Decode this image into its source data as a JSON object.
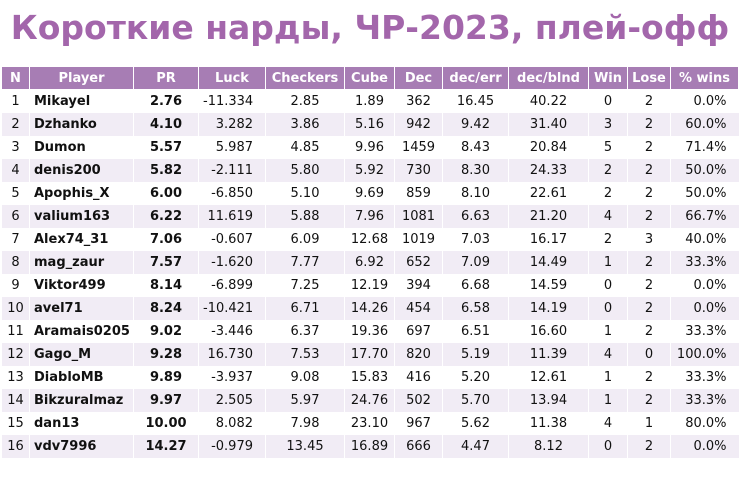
{
  "header": {
    "title": "Короткие нарды, ЧР-2023, плей-офф"
  },
  "table": {
    "columns": [
      "N",
      "Player",
      "PR",
      "Luck",
      "Checkers",
      "Cube",
      "Dec",
      "dec/err",
      "dec/blnd",
      "Win",
      "Lose",
      "% wins"
    ],
    "rows": [
      [
        "1",
        "Mikayel",
        "2.76",
        "-11.334",
        "2.85",
        "1.89",
        "362",
        "16.45",
        "40.22",
        "0",
        "2",
        "0.0%"
      ],
      [
        "2",
        "Dzhanko",
        "4.10",
        "3.282",
        "3.86",
        "5.16",
        "942",
        "9.42",
        "31.40",
        "3",
        "2",
        "60.0%"
      ],
      [
        "3",
        "Dumon",
        "5.57",
        "5.987",
        "4.85",
        "9.96",
        "1459",
        "8.43",
        "20.84",
        "5",
        "2",
        "71.4%"
      ],
      [
        "4",
        "denis200",
        "5.82",
        "-2.111",
        "5.80",
        "5.92",
        "730",
        "8.30",
        "24.33",
        "2",
        "2",
        "50.0%"
      ],
      [
        "5",
        "Apophis_X",
        "6.00",
        "-6.850",
        "5.10",
        "9.69",
        "859",
        "8.10",
        "22.61",
        "2",
        "2",
        "50.0%"
      ],
      [
        "6",
        "valium163",
        "6.22",
        "11.619",
        "5.88",
        "7.96",
        "1081",
        "6.63",
        "21.20",
        "4",
        "2",
        "66.7%"
      ],
      [
        "7",
        "Alex74_31",
        "7.06",
        "-0.607",
        "6.09",
        "12.68",
        "1019",
        "7.03",
        "16.17",
        "2",
        "3",
        "40.0%"
      ],
      [
        "8",
        "mag_zaur",
        "7.57",
        "-1.620",
        "7.77",
        "6.92",
        "652",
        "7.09",
        "14.49",
        "1",
        "2",
        "33.3%"
      ],
      [
        "9",
        "Viktor499",
        "8.14",
        "-6.899",
        "7.25",
        "12.19",
        "394",
        "6.68",
        "14.59",
        "0",
        "2",
        "0.0%"
      ],
      [
        "10",
        "avel71",
        "8.24",
        "-10.421",
        "6.71",
        "14.26",
        "454",
        "6.58",
        "14.19",
        "0",
        "2",
        "0.0%"
      ],
      [
        "11",
        "Aramais0205",
        "9.02",
        "-3.446",
        "6.37",
        "19.36",
        "697",
        "6.51",
        "16.60",
        "1",
        "2",
        "33.3%"
      ],
      [
        "12",
        "Gago_M",
        "9.28",
        "16.730",
        "7.53",
        "17.70",
        "820",
        "5.19",
        "11.39",
        "4",
        "0",
        "100.0%"
      ],
      [
        "13",
        "DiabloMB",
        "9.89",
        "-3.937",
        "9.08",
        "15.83",
        "416",
        "5.20",
        "12.61",
        "1",
        "2",
        "33.3%"
      ],
      [
        "14",
        "Bikzuralmaz",
        "9.97",
        "2.505",
        "5.97",
        "24.76",
        "502",
        "5.70",
        "13.94",
        "1",
        "2",
        "33.3%"
      ],
      [
        "15",
        "dan13",
        "10.00",
        "8.082",
        "7.98",
        "23.10",
        "967",
        "5.62",
        "11.38",
        "4",
        "1",
        "80.0%"
      ],
      [
        "16",
        "vdv7996",
        "14.27",
        "-0.979",
        "13.45",
        "16.89",
        "666",
        "4.47",
        "8.12",
        "0",
        "2",
        "0.0%"
      ]
    ]
  }
}
